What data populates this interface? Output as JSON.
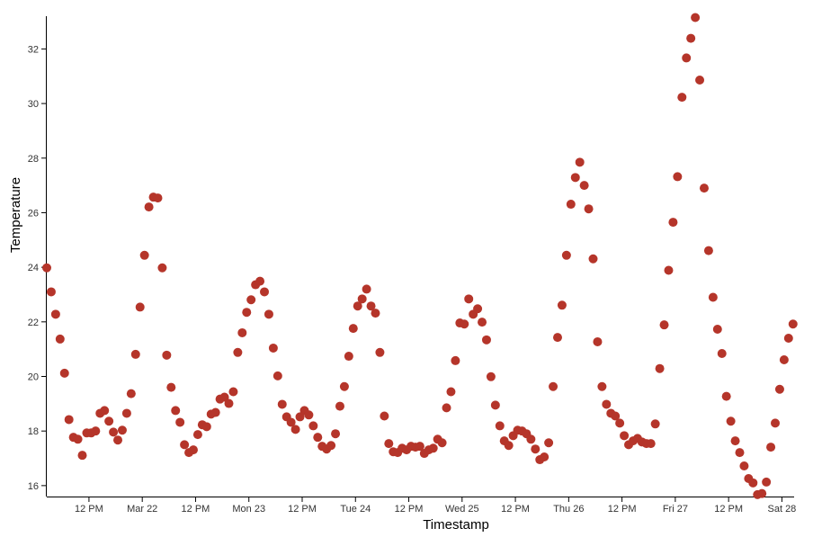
{
  "chart_data": {
    "type": "scatter",
    "x_label": "Timestamp",
    "y_label": "Temperature",
    "color": "#b5352a",
    "x": [
      "Mar 21 02:30",
      "Mar 21 03:30",
      "Mar 21 04:30",
      "Mar 21 05:30",
      "Mar 21 06:30",
      "Mar 21 07:30",
      "Mar 21 08:30",
      "Mar 21 09:30",
      "Mar 21 10:30",
      "Mar 21 11:30",
      "Mar 21 12:30",
      "Mar 21 13:30",
      "Mar 21 14:30",
      "Mar 21 15:30",
      "Mar 21 16:30",
      "Mar 21 17:30",
      "Mar 21 18:30",
      "Mar 21 19:30",
      "Mar 21 20:30",
      "Mar 21 21:30",
      "Mar 21 22:30",
      "Mar 21 23:30",
      "Mar 22 00:30",
      "Mar 22 01:30",
      "Mar 22 02:30",
      "Mar 22 03:30",
      "Mar 22 04:30",
      "Mar 22 05:30",
      "Mar 22 06:30",
      "Mar 22 07:30",
      "Mar 22 08:30",
      "Mar 22 09:30",
      "Mar 22 10:30",
      "Mar 22 11:30",
      "Mar 22 12:30",
      "Mar 22 13:30",
      "Mar 22 14:30",
      "Mar 22 15:30",
      "Mar 22 16:30",
      "Mar 22 17:30",
      "Mar 22 18:30",
      "Mar 22 19:30",
      "Mar 22 20:30",
      "Mar 22 21:30",
      "Mar 22 22:30",
      "Mar 22 23:30",
      "Mar 23 00:30",
      "Mar 23 01:30",
      "Mar 23 02:30",
      "Mar 23 03:30",
      "Mar 23 04:30",
      "Mar 23 05:30",
      "Mar 23 06:30",
      "Mar 23 07:30",
      "Mar 23 08:30",
      "Mar 23 09:30",
      "Mar 23 10:30",
      "Mar 23 11:30",
      "Mar 23 12:30",
      "Mar 23 13:30",
      "Mar 23 14:30",
      "Mar 23 15:30",
      "Mar 23 16:30",
      "Mar 23 17:30",
      "Mar 23 18:30",
      "Mar 23 19:30",
      "Mar 23 20:30",
      "Mar 23 21:30",
      "Mar 23 22:30",
      "Mar 23 23:30",
      "Mar 24 00:30",
      "Mar 24 01:30",
      "Mar 24 02:30",
      "Mar 24 03:30",
      "Mar 24 04:30",
      "Mar 24 05:30",
      "Mar 24 06:30",
      "Mar 24 07:30",
      "Mar 24 08:30",
      "Mar 24 09:30",
      "Mar 24 10:30",
      "Mar 24 11:30",
      "Mar 24 12:30",
      "Mar 24 13:30",
      "Mar 24 14:30",
      "Mar 24 15:30",
      "Mar 24 16:30",
      "Mar 24 17:30",
      "Mar 24 18:30",
      "Mar 24 19:30",
      "Mar 24 20:30",
      "Mar 24 21:30",
      "Mar 24 22:30",
      "Mar 24 23:30",
      "Mar 25 00:30",
      "Mar 25 01:30",
      "Mar 25 02:30",
      "Mar 25 03:30",
      "Mar 25 04:30",
      "Mar 25 05:30",
      "Mar 25 06:30",
      "Mar 25 07:30",
      "Mar 25 08:30",
      "Mar 25 09:30",
      "Mar 25 10:30",
      "Mar 25 11:30",
      "Mar 25 12:30",
      "Mar 25 13:30",
      "Mar 25 14:30",
      "Mar 25 15:30",
      "Mar 25 16:30",
      "Mar 25 17:30",
      "Mar 25 18:30",
      "Mar 25 19:30",
      "Mar 25 20:30",
      "Mar 25 21:30",
      "Mar 25 22:30",
      "Mar 25 23:30",
      "Mar 26 00:30",
      "Mar 26 01:30",
      "Mar 26 02:30",
      "Mar 26 03:30",
      "Mar 26 04:30",
      "Mar 26 05:30",
      "Mar 26 06:30",
      "Mar 26 07:30",
      "Mar 26 08:30",
      "Mar 26 09:30",
      "Mar 26 10:30",
      "Mar 26 11:30",
      "Mar 26 12:30",
      "Mar 26 13:30",
      "Mar 26 14:30",
      "Mar 26 15:30",
      "Mar 26 16:30",
      "Mar 26 17:30",
      "Mar 26 18:30",
      "Mar 26 19:30",
      "Mar 26 20:30",
      "Mar 26 21:30",
      "Mar 26 22:30",
      "Mar 26 23:30",
      "Mar 27 00:30",
      "Mar 27 01:30",
      "Mar 27 02:30",
      "Mar 27 03:30",
      "Mar 27 04:30",
      "Mar 27 05:30",
      "Mar 27 06:30",
      "Mar 27 07:30",
      "Mar 27 08:30",
      "Mar 27 09:30",
      "Mar 27 10:30",
      "Mar 27 11:30",
      "Mar 27 12:30",
      "Mar 27 13:30",
      "Mar 27 14:30",
      "Mar 27 15:30",
      "Mar 27 16:30",
      "Mar 27 17:30",
      "Mar 27 18:30",
      "Mar 27 19:30",
      "Mar 27 20:30",
      "Mar 27 21:30",
      "Mar 27 22:30",
      "Mar 27 23:30",
      "Mar 28 00:30",
      "Mar 28 01:30",
      "Mar 28 02:30"
    ],
    "values": [
      23.98,
      23.1,
      22.28,
      21.37,
      20.12,
      18.42,
      17.77,
      17.7,
      17.11,
      17.93,
      17.93,
      18.0,
      18.65,
      18.75,
      18.36,
      17.96,
      17.67,
      18.03,
      18.65,
      19.37,
      20.81,
      22.54,
      24.44,
      26.21,
      26.57,
      26.54,
      23.98,
      20.78,
      19.6,
      18.75,
      18.32,
      17.5,
      17.21,
      17.31,
      17.87,
      18.23,
      18.16,
      18.62,
      18.68,
      19.17,
      19.24,
      19.01,
      19.44,
      20.88,
      21.6,
      22.35,
      22.81,
      23.36,
      23.49,
      23.1,
      22.28,
      21.04,
      20.02,
      18.98,
      18.52,
      18.32,
      18.06,
      18.52,
      18.75,
      18.59,
      18.19,
      17.77,
      17.44,
      17.34,
      17.47,
      17.9,
      18.91,
      19.63,
      20.74,
      21.76,
      22.58,
      22.84,
      23.2,
      22.58,
      22.32,
      20.88,
      18.55,
      17.54,
      17.24,
      17.21,
      17.37,
      17.31,
      17.44,
      17.41,
      17.44,
      17.18,
      17.31,
      17.37,
      17.7,
      17.57,
      18.85,
      19.44,
      20.58,
      21.96,
      21.92,
      22.84,
      22.28,
      22.48,
      21.99,
      21.34,
      19.99,
      18.95,
      18.19,
      17.64,
      17.47,
      17.83,
      18.03,
      18.0,
      17.9,
      17.7,
      17.34,
      16.95,
      17.05,
      17.57,
      19.63,
      21.43,
      22.61,
      24.44,
      26.31,
      27.29,
      27.85,
      27.0,
      26.14,
      24.31,
      21.27,
      19.63,
      18.98,
      18.65,
      18.55,
      18.29,
      17.83,
      17.5,
      17.64,
      17.73,
      17.6,
      17.54,
      17.54,
      18.26,
      20.29,
      21.89,
      23.89,
      25.65,
      27.32,
      30.23,
      31.67,
      32.39,
      33.15,
      30.86,
      26.9,
      24.61,
      22.9,
      21.73,
      20.84,
      19.27,
      18.36,
      17.64,
      17.21,
      16.72,
      16.26,
      16.1,
      15.67,
      15.71,
      16.13,
      17.41,
      18.29,
      19.53,
      20.61,
      21.4,
      21.92
    ],
    "xlim": [
      "Mar 21 02:30",
      "Mar 28 02:45"
    ],
    "xticks": [
      {
        "value": "Mar 21 12:00",
        "label": "12 PM"
      },
      {
        "value": "Mar 22 00:00",
        "label": "Mar 22"
      },
      {
        "value": "Mar 22 12:00",
        "label": "12 PM"
      },
      {
        "value": "Mar 23 00:00",
        "label": "Mon 23"
      },
      {
        "value": "Mar 23 12:00",
        "label": "12 PM"
      },
      {
        "value": "Mar 24 00:00",
        "label": "Tue 24"
      },
      {
        "value": "Mar 24 12:00",
        "label": "12 PM"
      },
      {
        "value": "Mar 25 00:00",
        "label": "Wed 25"
      },
      {
        "value": "Mar 25 12:00",
        "label": "12 PM"
      },
      {
        "value": "Mar 26 00:00",
        "label": "Thu 26"
      },
      {
        "value": "Mar 26 12:00",
        "label": "12 PM"
      },
      {
        "value": "Mar 27 00:00",
        "label": "Fri 27"
      },
      {
        "value": "Mar 27 12:00",
        "label": "12 PM"
      },
      {
        "value": "Mar 28 00:00",
        "label": "Sat 28"
      }
    ],
    "ylim": [
      15.6,
      33.2
    ],
    "yticks": [
      16,
      18,
      20,
      22,
      24,
      26,
      28,
      30,
      32
    ]
  }
}
